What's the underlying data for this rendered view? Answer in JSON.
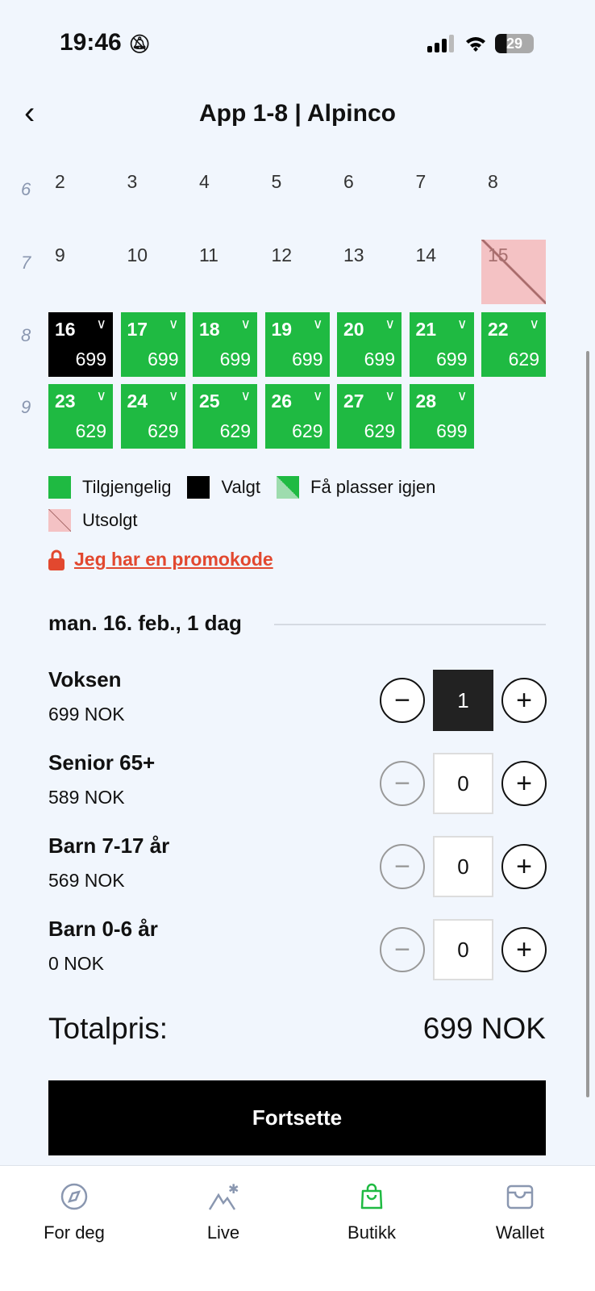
{
  "status": {
    "time": "19:46",
    "battery": "29"
  },
  "header": {
    "title": "App 1-8 | Alpinco"
  },
  "calendar": {
    "weeks": [
      {
        "week": "6",
        "days": [
          {
            "d": "2"
          },
          {
            "d": "3"
          },
          {
            "d": "4"
          },
          {
            "d": "5"
          },
          {
            "d": "6"
          },
          {
            "d": "7"
          },
          {
            "d": "8"
          }
        ]
      },
      {
        "week": "7",
        "days": [
          {
            "d": "9"
          },
          {
            "d": "10"
          },
          {
            "d": "11"
          },
          {
            "d": "12"
          },
          {
            "d": "13"
          },
          {
            "d": "14"
          },
          {
            "d": "15",
            "state": "sold"
          }
        ]
      },
      {
        "week": "8",
        "days": [
          {
            "d": "16",
            "p": "699",
            "state": "selected"
          },
          {
            "d": "17",
            "p": "699",
            "state": "available"
          },
          {
            "d": "18",
            "p": "699",
            "state": "available"
          },
          {
            "d": "19",
            "p": "699",
            "state": "available"
          },
          {
            "d": "20",
            "p": "699",
            "state": "available"
          },
          {
            "d": "21",
            "p": "699",
            "state": "available"
          },
          {
            "d": "22",
            "p": "629",
            "state": "available"
          }
        ]
      },
      {
        "week": "9",
        "days": [
          {
            "d": "23",
            "p": "629",
            "state": "available"
          },
          {
            "d": "24",
            "p": "629",
            "state": "available"
          },
          {
            "d": "25",
            "p": "629",
            "state": "available"
          },
          {
            "d": "26",
            "p": "629",
            "state": "available"
          },
          {
            "d": "27",
            "p": "629",
            "state": "available"
          },
          {
            "d": "28",
            "p": "699",
            "state": "available"
          }
        ]
      }
    ]
  },
  "legend": {
    "available": "Tilgjengelig",
    "selected": "Valgt",
    "few": "Få plasser igjen",
    "sold": "Utsolgt"
  },
  "promo": "Jeg har en promokode",
  "selection": {
    "date": "man. 16. feb., 1 dag"
  },
  "tickets": [
    {
      "name": "Voksen",
      "price": "699 NOK",
      "qty": "1"
    },
    {
      "name": "Senior 65+",
      "price": "589 NOK",
      "qty": "0"
    },
    {
      "name": "Barn 7-17 år",
      "price": "569 NOK",
      "qty": "0"
    },
    {
      "name": "Barn 0-6 år",
      "price": "0 NOK",
      "qty": "0"
    }
  ],
  "total": {
    "label": "Totalpris:",
    "value": "699 NOK"
  },
  "continue": "Fortsette",
  "tabs": [
    {
      "label": "For deg"
    },
    {
      "label": "Live"
    },
    {
      "label": "Butikk",
      "active": true
    },
    {
      "label": "Wallet"
    }
  ],
  "colors": {
    "available": "#1fba42",
    "selected": "#000000",
    "sold": "#f4c2c4",
    "promo": "#e2482f",
    "tab_active": "#1fba42",
    "tab_inactive": "#8a97b0"
  }
}
